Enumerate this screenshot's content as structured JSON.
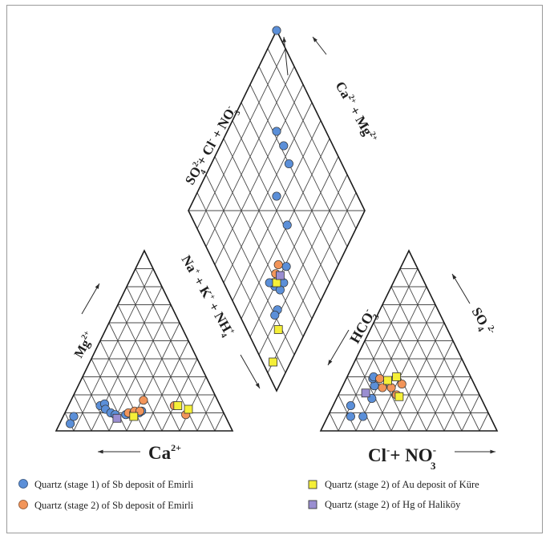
{
  "chart_data": {
    "type": "scatter",
    "subtype": "piper-diagram",
    "axes": {
      "cation_bottom": "Ca2+",
      "cation_left": "Mg2+",
      "cation_right": "Na+ + K+ + NH4+",
      "anion_bottom": "Cl- + NO3-",
      "anion_left": "HCO3-",
      "anion_right": "SO4 2-",
      "diamond_left": "SO42- + Cl- + NO3-",
      "diamond_right": "Ca2+ + Mg2+"
    },
    "series": [
      {
        "name": "Quartz (stage 1) of Sb deposit of Emirli",
        "marker": "circle",
        "color": "#5b8fd8",
        "cation": [
          [
            90,
            4
          ],
          [
            86,
            8
          ],
          [
            68,
            14
          ],
          [
            65,
            15
          ],
          [
            66,
            12
          ],
          [
            64,
            10
          ],
          [
            62,
            9
          ],
          [
            56,
            9
          ],
          [
            53,
            9
          ],
          [
            48,
            10
          ],
          [
            46,
            11
          ]
        ],
        "anion": [
          [
            79,
            8
          ],
          [
            72,
            8
          ],
          [
            76,
            14
          ],
          [
            62,
            18
          ],
          [
            57,
            25
          ],
          [
            56,
            29
          ],
          [
            55,
            30
          ]
        ],
        "diamond": [
          [
            64,
            28
          ],
          [
            56,
            30
          ],
          [
            40,
            48
          ],
          [
            29,
            60
          ],
          [
            22,
            77
          ],
          [
            22,
            80
          ],
          [
            26,
            66
          ],
          [
            30,
            72
          ],
          [
            32,
            72
          ],
          [
            34,
            74
          ],
          [
            54,
            46
          ],
          [
            72,
            28
          ],
          [
            26,
            70
          ],
          [
            100,
            0
          ]
        ]
      },
      {
        "name": "Quartz (stage 2) of Sb deposit of Emirli",
        "marker": "circle",
        "color": "#f2955a",
        "cation": [
          [
            54,
            10
          ],
          [
            51,
            10
          ],
          [
            50,
            11
          ],
          [
            47,
            11
          ],
          [
            42,
            17
          ],
          [
            26,
            14
          ],
          [
            22,
            9
          ]
        ],
        "anion": [
          [
            47,
            20
          ],
          [
            48,
            24
          ],
          [
            53,
            24
          ],
          [
            52,
            29
          ],
          [
            41,
            26
          ]
        ],
        "diamond": [
          [
            34,
            64
          ],
          [
            33,
            68
          ]
        ]
      },
      {
        "name": "Quartz (stage 2) of Au deposit of Küre",
        "marker": "square",
        "color": "#f5ef38",
        "cation": [
          [
            52,
            8
          ],
          [
            24,
            14
          ],
          [
            19,
            12
          ]
        ],
        "anion": [
          [
            48,
            28
          ],
          [
            42,
            30
          ],
          [
            46,
            19
          ]
        ],
        "diamond": [
          [
            30,
            70
          ],
          [
            16,
            82
          ],
          [
            10,
            94
          ]
        ]
      },
      {
        "name": "Quartz (stage 2) of Hg of Haliköy",
        "marker": "square",
        "color": "#9a8ed1",
        "cation": [
          [
            62,
            7
          ]
        ],
        "anion": [
          [
            64,
            21
          ]
        ],
        "diamond": [
          [
            30,
            66
          ]
        ]
      }
    ],
    "legend_position": "bottom"
  },
  "labels": {
    "cation_bottom_main": "Ca",
    "cation_bottom_sup": "2+",
    "cation_left_main": "Mg",
    "cation_left_sup": "2+",
    "anion_bottom_main": "Cl",
    "anion_bottom_sup": "-",
    "anion_bottom_plus": "+ NO",
    "anion_bottom_sub": "3",
    "anion_bottom_sup2": "-",
    "anion_left_main": "HCO",
    "anion_left_sub": "3",
    "anion_left_sup": "-",
    "anion_right_main": "SO",
    "anion_right_sub": "4",
    "anion_right_sup": "2-"
  }
}
